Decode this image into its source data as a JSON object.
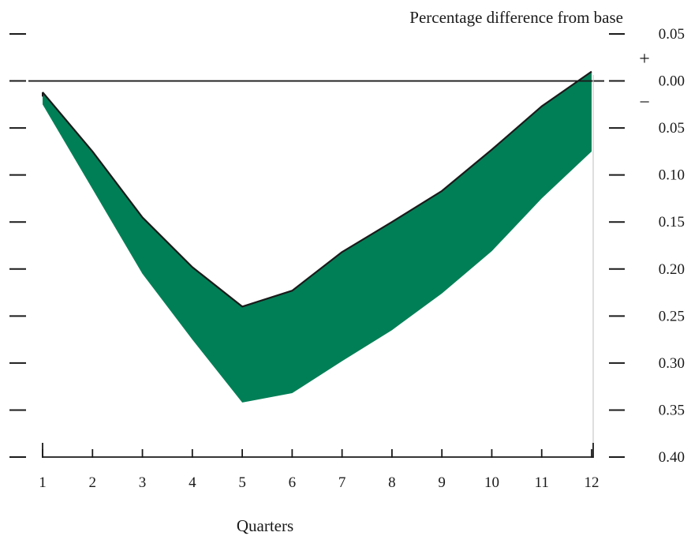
{
  "chart_data": {
    "type": "area",
    "title": "Percentage difference from base",
    "xlabel": "Quarters",
    "ylabel": "",
    "x": [
      1,
      2,
      3,
      4,
      5,
      6,
      7,
      8,
      9,
      10,
      11,
      12
    ],
    "x_tick_labels": [
      "1",
      "2",
      "3",
      "4",
      "5",
      "6",
      "7",
      "8",
      "9",
      "10",
      "11",
      "12"
    ],
    "y_tick_labels": [
      "0.05",
      "0.00",
      "0.05",
      "0.10",
      "0.15",
      "0.20",
      "0.25",
      "0.30",
      "0.35",
      "0.40"
    ],
    "y_tick_values": [
      0.05,
      0.0,
      -0.05,
      -0.1,
      -0.15,
      -0.2,
      -0.25,
      -0.3,
      -0.35,
      -0.4
    ],
    "ylim": [
      -0.4,
      0.05
    ],
    "xlim": [
      1,
      12
    ],
    "sign_labels": {
      "above_zero": "+",
      "below_zero": "−"
    },
    "series": [
      {
        "values": [
          -0.012,
          -0.075,
          -0.145,
          -0.198,
          -0.24,
          -0.223,
          -0.182,
          -0.15,
          -0.117,
          -0.073,
          -0.027,
          0.01
        ]
      },
      {
        "values": [
          -0.025,
          -0.115,
          -0.205,
          -0.275,
          -0.342,
          -0.332,
          -0.298,
          -0.265,
          -0.226,
          -0.181,
          -0.125,
          -0.075
        ]
      }
    ],
    "fill_color": "#007f56",
    "line_color": "#1a1a1a",
    "grid": false
  }
}
